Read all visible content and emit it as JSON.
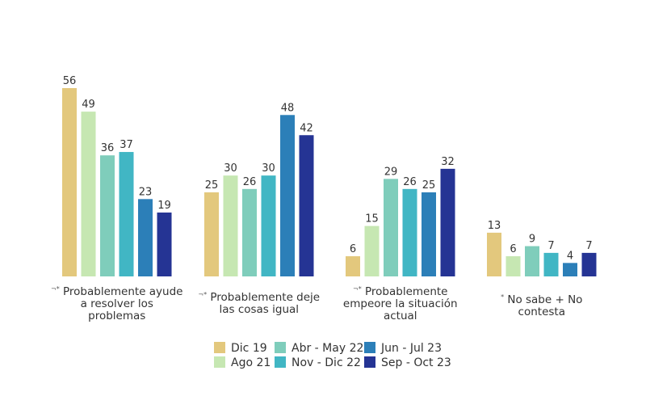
{
  "chart_data": {
    "type": "bar",
    "title": "",
    "xlabel": "",
    "ylabel": "",
    "ylim": [
      0,
      56
    ],
    "grid": false,
    "legend_position": "bottom-center",
    "categories": [
      {
        "marker": "¬*",
        "lines": [
          "Probablemente ayude",
          "a resolver los",
          "problemas"
        ]
      },
      {
        "marker": "¬*",
        "lines": [
          "Probablemente deje",
          "las cosas igual"
        ]
      },
      {
        "marker": "¬*",
        "lines": [
          "Probablemente",
          "empeore la situación",
          "actual"
        ]
      },
      {
        "marker": "*",
        "lines": [
          "No sabe + No",
          "contesta"
        ]
      }
    ],
    "series": [
      {
        "name": "Dic 19",
        "color": "#E3C87D",
        "values": [
          56,
          25,
          6,
          13
        ]
      },
      {
        "name": "Ago 21",
        "color": "#C6E7B2",
        "values": [
          49,
          30,
          15,
          6
        ]
      },
      {
        "name": "Abr - May 22",
        "color": "#7FCDBB",
        "values": [
          36,
          26,
          29,
          9
        ]
      },
      {
        "name": "Nov - Dic 22",
        "color": "#41B6C4",
        "values": [
          37,
          30,
          26,
          7
        ]
      },
      {
        "name": "Jun - Jul 23",
        "color": "#2C7FB8",
        "values": [
          23,
          48,
          25,
          4
        ]
      },
      {
        "name": "Sep - Oct 23",
        "color": "#253494",
        "values": [
          19,
          42,
          32,
          7
        ]
      }
    ]
  }
}
